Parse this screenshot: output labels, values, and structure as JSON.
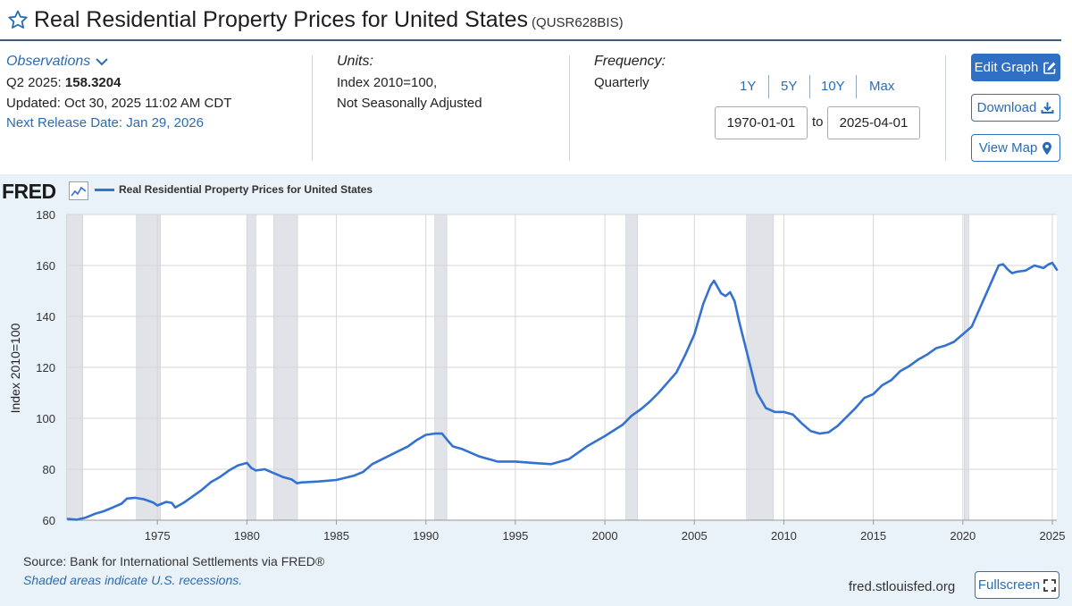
{
  "header": {
    "title": "Real Residential Property Prices for United States",
    "series_id": "(QUSR628BIS)"
  },
  "observations": {
    "link_label": "Observations",
    "period_label": "Q2 2025:",
    "value": "158.3204",
    "updated": "Updated: Oct 30, 2025 11:02 AM CDT",
    "next_release": "Next Release Date: Jan 29, 2026"
  },
  "units": {
    "label": "Units:",
    "line1": "Index 2010=100,",
    "line2": "Not Seasonally Adjusted"
  },
  "frequency": {
    "label": "Frequency:",
    "value": "Quarterly"
  },
  "range": {
    "buttons": [
      "1Y",
      "5Y",
      "10Y",
      "Max"
    ],
    "start": "1970-01-01",
    "to_label": "to",
    "end": "2025-04-01"
  },
  "actions": {
    "edit": "Edit Graph",
    "download": "Download",
    "map": "View Map",
    "fullscreen": "Fullscreen"
  },
  "graph": {
    "logo": "FRED",
    "source": "Source: Bank for International Settlements via FRED®",
    "shade_note": "Shaded areas indicate U.S. recessions.",
    "url": "fred.stlouisfed.org"
  },
  "colors": {
    "line": "#3372d1",
    "accent": "#2f6fc4",
    "recession": "#e1e3e8",
    "panel_bg": "#e9f1f9"
  },
  "chart_data": {
    "type": "line",
    "ylabel": "Index 2010=100",
    "ylim": [
      60,
      180
    ],
    "yticks": [
      60,
      80,
      100,
      120,
      140,
      160,
      180
    ],
    "xlim": [
      1970.0,
      2025.25
    ],
    "xticks": [
      1975,
      1980,
      1985,
      1990,
      1995,
      2000,
      2005,
      2010,
      2015,
      2020,
      2025
    ],
    "grid": true,
    "legend_position": "top-left",
    "recessions": [
      [
        1969.92,
        1970.83
      ],
      [
        1973.83,
        1975.17
      ],
      [
        1980.0,
        1980.5
      ],
      [
        1981.5,
        1982.83
      ],
      [
        1990.5,
        1991.17
      ],
      [
        2001.17,
        2001.83
      ],
      [
        2007.92,
        2009.42
      ],
      [
        2020.08,
        2020.33
      ]
    ],
    "series": [
      {
        "name": "Real Residential Property Prices for United States",
        "color": "#3372d1",
        "points": [
          [
            1970.0,
            60.5
          ],
          [
            1970.5,
            60.2
          ],
          [
            1971.0,
            61.0
          ],
          [
            1971.5,
            62.5
          ],
          [
            1972.0,
            63.5
          ],
          [
            1972.5,
            65.0
          ],
          [
            1973.0,
            66.5
          ],
          [
            1973.3,
            68.5
          ],
          [
            1973.75,
            68.8
          ],
          [
            1974.25,
            68.2
          ],
          [
            1974.75,
            67.0
          ],
          [
            1975.0,
            65.8
          ],
          [
            1975.5,
            67.2
          ],
          [
            1975.8,
            66.8
          ],
          [
            1976.0,
            65.0
          ],
          [
            1976.5,
            67.0
          ],
          [
            1977.0,
            69.5
          ],
          [
            1977.5,
            72.0
          ],
          [
            1978.0,
            75.0
          ],
          [
            1978.5,
            77.0
          ],
          [
            1979.0,
            79.5
          ],
          [
            1979.5,
            81.5
          ],
          [
            1980.0,
            82.5
          ],
          [
            1980.25,
            80.5
          ],
          [
            1980.5,
            79.5
          ],
          [
            1981.0,
            80.0
          ],
          [
            1981.5,
            78.5
          ],
          [
            1982.0,
            77.0
          ],
          [
            1982.5,
            76.0
          ],
          [
            1982.8,
            74.5
          ],
          [
            1983.0,
            74.8
          ],
          [
            1984.0,
            75.2
          ],
          [
            1985.0,
            75.8
          ],
          [
            1986.0,
            77.5
          ],
          [
            1986.5,
            79.0
          ],
          [
            1987.0,
            82.0
          ],
          [
            1988.0,
            85.5
          ],
          [
            1989.0,
            89.0
          ],
          [
            1989.5,
            91.5
          ],
          [
            1990.0,
            93.5
          ],
          [
            1990.5,
            94.0
          ],
          [
            1990.9,
            94.0
          ],
          [
            1991.25,
            91.0
          ],
          [
            1991.5,
            89.0
          ],
          [
            1992.0,
            88.0
          ],
          [
            1993.0,
            85.0
          ],
          [
            1994.0,
            83.0
          ],
          [
            1995.0,
            83.0
          ],
          [
            1996.0,
            82.5
          ],
          [
            1997.0,
            82.0
          ],
          [
            1998.0,
            84.0
          ],
          [
            1999.0,
            89.0
          ],
          [
            2000.0,
            93.0
          ],
          [
            2001.0,
            97.5
          ],
          [
            2001.5,
            101.0
          ],
          [
            2002.0,
            103.5
          ],
          [
            2002.5,
            106.5
          ],
          [
            2003.0,
            110.0
          ],
          [
            2004.0,
            118.0
          ],
          [
            2004.5,
            125.0
          ],
          [
            2005.0,
            133.0
          ],
          [
            2005.5,
            145.0
          ],
          [
            2005.9,
            152.0
          ],
          [
            2006.1,
            154.0
          ],
          [
            2006.5,
            149.0
          ],
          [
            2006.75,
            148.0
          ],
          [
            2007.0,
            149.5
          ],
          [
            2007.25,
            146.0
          ],
          [
            2007.5,
            138.0
          ],
          [
            2008.0,
            124.0
          ],
          [
            2008.5,
            110.0
          ],
          [
            2009.0,
            104.0
          ],
          [
            2009.5,
            102.5
          ],
          [
            2010.0,
            102.5
          ],
          [
            2010.5,
            101.5
          ],
          [
            2011.0,
            98.0
          ],
          [
            2011.5,
            95.0
          ],
          [
            2012.0,
            94.0
          ],
          [
            2012.5,
            94.5
          ],
          [
            2013.0,
            97.0
          ],
          [
            2014.0,
            104.0
          ],
          [
            2014.5,
            108.0
          ],
          [
            2015.0,
            109.5
          ],
          [
            2015.5,
            113.0
          ],
          [
            2016.0,
            115.0
          ],
          [
            2016.5,
            118.5
          ],
          [
            2017.0,
            120.5
          ],
          [
            2017.5,
            123.0
          ],
          [
            2018.0,
            125.0
          ],
          [
            2018.5,
            127.5
          ],
          [
            2019.0,
            128.5
          ],
          [
            2019.5,
            130.0
          ],
          [
            2020.0,
            133.0
          ],
          [
            2020.5,
            136.0
          ],
          [
            2021.0,
            144.0
          ],
          [
            2021.5,
            152.0
          ],
          [
            2022.0,
            160.0
          ],
          [
            2022.25,
            160.5
          ],
          [
            2022.5,
            158.5
          ],
          [
            2022.75,
            157.0
          ],
          [
            2023.0,
            157.5
          ],
          [
            2023.5,
            158.0
          ],
          [
            2024.0,
            160.0
          ],
          [
            2024.5,
            159.0
          ],
          [
            2024.8,
            160.5
          ],
          [
            2025.0,
            161.0
          ],
          [
            2025.25,
            158.3
          ]
        ]
      }
    ]
  }
}
